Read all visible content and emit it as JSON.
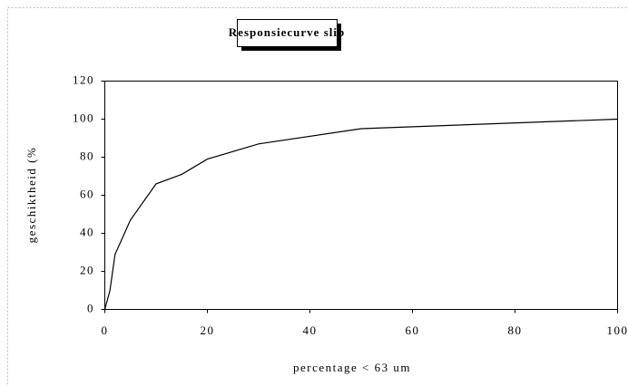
{
  "chart_data": {
    "type": "line",
    "title": "Responsiecurve slib",
    "x_label": "percentage < 63 um",
    "y_label": "geschiktheid (%",
    "x": [
      0,
      1,
      2,
      5,
      10,
      15,
      20,
      30,
      50,
      100
    ],
    "values": [
      0,
      10,
      29,
      47,
      66,
      71,
      79,
      87,
      95,
      100
    ],
    "color": "#000000",
    "xlim": [
      0,
      100
    ],
    "xticks": [
      0,
      20,
      40,
      60,
      80,
      100
    ],
    "ylim": [
      0,
      120
    ],
    "yticks": [
      0,
      20,
      40,
      60,
      80,
      100,
      120
    ],
    "grid": false
  }
}
